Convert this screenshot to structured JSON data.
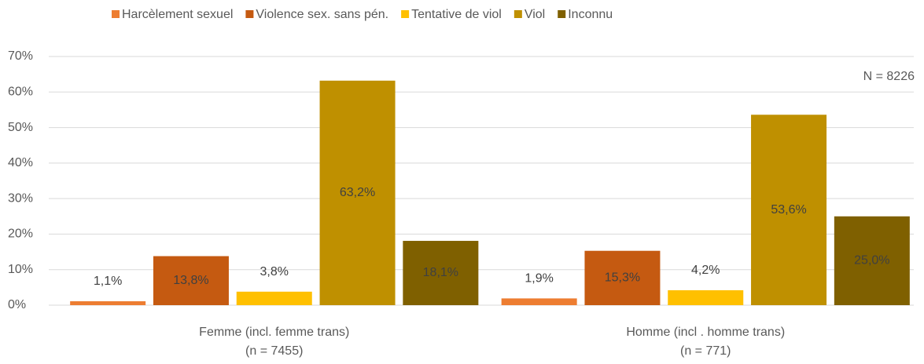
{
  "chart_data": {
    "type": "bar",
    "categories": [
      [
        "Femme (incl. femme trans)",
        "(n = 7455)"
      ],
      [
        "Homme (incl . homme trans)",
        "(n = 771)"
      ]
    ],
    "series": [
      {
        "name": "Harcèlement sexuel",
        "color": "#ed7d31",
        "values": [
          1.1,
          1.9
        ],
        "value_labels": [
          "1,1%",
          "1,9%"
        ]
      },
      {
        "name": "Violence sex. sans pén.",
        "color": "#c55a11",
        "values": [
          13.8,
          15.3
        ],
        "value_labels": [
          "13,8%",
          "15,3%"
        ]
      },
      {
        "name": "Tentative de viol",
        "color": "#ffc000",
        "values": [
          3.8,
          4.2
        ],
        "value_labels": [
          "3,8%",
          "4,2%"
        ]
      },
      {
        "name": "Viol",
        "color": "#bf9000",
        "values": [
          63.2,
          53.6
        ],
        "value_labels": [
          "63,2%",
          "53,6%"
        ]
      },
      {
        "name": "Inconnu",
        "color": "#7f6000",
        "values": [
          18.1,
          25.0
        ],
        "value_labels": [
          "18,1%",
          "25,0%"
        ]
      }
    ],
    "ylim": [
      0,
      70
    ],
    "yticks": [
      {
        "value": 0,
        "label": "0%"
      },
      {
        "value": 10,
        "label": "10%"
      },
      {
        "value": 20,
        "label": "20%"
      },
      {
        "value": 30,
        "label": "30%"
      },
      {
        "value": 40,
        "label": "40%"
      },
      {
        "value": 50,
        "label": "50%"
      },
      {
        "value": 60,
        "label": "60%"
      },
      {
        "value": 70,
        "label": "70%"
      }
    ],
    "grid": true,
    "legend": "top",
    "annotation": "N = 8226"
  }
}
